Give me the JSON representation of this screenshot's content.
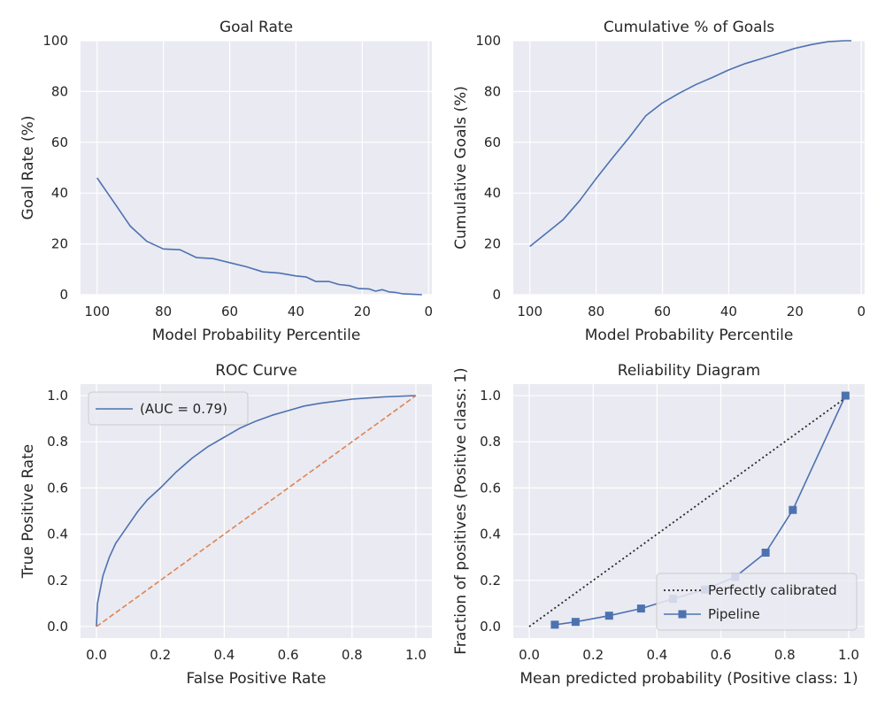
{
  "chart_data": [
    {
      "type": "line",
      "title": "Goal Rate",
      "xlabel": "Model Probability Percentile",
      "ylabel": "Goal Rate (%)",
      "xlim": [
        105,
        -1
      ],
      "ylim": [
        0,
        100
      ],
      "xticks": [
        100,
        80,
        60,
        40,
        20,
        0
      ],
      "yticks": [
        0,
        20,
        40,
        60,
        80,
        100
      ],
      "grid": true,
      "series": [
        {
          "color": "#4c72b0",
          "x": [
            100,
            95,
            90,
            85,
            80,
            75,
            70,
            65,
            60,
            55,
            50,
            45,
            40,
            37,
            34,
            30,
            27,
            24,
            21,
            18,
            16,
            14,
            12,
            10,
            8,
            5,
            2
          ],
          "y": [
            46,
            36.5,
            27,
            21,
            18,
            17.7,
            14.6,
            14.2,
            12.6,
            11,
            9,
            8.5,
            7.4,
            7,
            5.2,
            5.2,
            4,
            3.6,
            2.4,
            2.3,
            1.4,
            2,
            1.1,
            0.9,
            0.4,
            0.2,
            0
          ]
        }
      ]
    },
    {
      "type": "line",
      "title": "Cumulative % of Goals",
      "xlabel": "Model Probability Percentile",
      "ylabel": "Cumulative Goals (%)",
      "xlim": [
        105,
        -1
      ],
      "ylim": [
        0,
        100
      ],
      "xticks": [
        100,
        80,
        60,
        40,
        20,
        0
      ],
      "yticks": [
        0,
        20,
        40,
        60,
        80,
        100
      ],
      "grid": true,
      "series": [
        {
          "color": "#4c72b0",
          "x": [
            100,
            90,
            85,
            80,
            75,
            70,
            65,
            60,
            55,
            50,
            45,
            40,
            35,
            30,
            25,
            20,
            15,
            10,
            5,
            3
          ],
          "y": [
            19,
            29.5,
            37,
            45.7,
            54,
            62,
            70.5,
            75.5,
            79.3,
            82.7,
            85.5,
            88.5,
            91,
            93,
            95,
            97,
            98.5,
            99.6,
            100,
            100
          ]
        }
      ]
    },
    {
      "type": "line",
      "title": "ROC Curve",
      "xlabel": "False Positive Rate",
      "ylabel": "True Positive Rate",
      "xlim": [
        -0.05,
        1.05
      ],
      "ylim": [
        -0.05,
        1.05
      ],
      "xticks": [
        0.0,
        0.2,
        0.4,
        0.6,
        0.8,
        1.0
      ],
      "yticks": [
        0.0,
        0.2,
        0.4,
        0.6,
        0.8,
        1.0
      ],
      "grid": true,
      "legend": "top-left",
      "series": [
        {
          "name": "(AUC = 0.79)",
          "color": "#4c72b0",
          "x": [
            0,
            0.003,
            0.01,
            0.02,
            0.04,
            0.06,
            0.08,
            0.1,
            0.13,
            0.16,
            0.2,
            0.25,
            0.3,
            0.35,
            0.4,
            0.45,
            0.5,
            0.55,
            0.6,
            0.65,
            0.7,
            0.8,
            0.9,
            1.0
          ],
          "y": [
            0,
            0.1,
            0.15,
            0.22,
            0.3,
            0.36,
            0.4,
            0.44,
            0.5,
            0.55,
            0.6,
            0.67,
            0.73,
            0.78,
            0.82,
            0.86,
            0.89,
            0.915,
            0.935,
            0.955,
            0.967,
            0.985,
            0.995,
            1.0
          ]
        },
        {
          "color": "#dd8452",
          "style": "dashed",
          "x": [
            0,
            1
          ],
          "y": [
            0,
            1
          ]
        }
      ]
    },
    {
      "type": "line",
      "title": "Reliability Diagram",
      "xlabel": "Mean predicted probability (Positive class: 1)",
      "ylabel": "Fraction of positives (Positive class: 1)",
      "xlim": [
        -0.05,
        1.05
      ],
      "ylim": [
        -0.05,
        1.05
      ],
      "xticks": [
        0.0,
        0.2,
        0.4,
        0.6,
        0.8,
        1.0
      ],
      "yticks": [
        0.0,
        0.2,
        0.4,
        0.6,
        0.8,
        1.0
      ],
      "grid": true,
      "legend": "lower-right",
      "series": [
        {
          "name": "Perfectly calibrated",
          "color": "#262626",
          "style": "dotted",
          "x": [
            0,
            1
          ],
          "y": [
            0,
            1
          ]
        },
        {
          "name": "Pipeline",
          "color": "#4c72b0",
          "marker": "square",
          "x": [
            0.08,
            0.145,
            0.25,
            0.35,
            0.45,
            0.55,
            0.645,
            0.74,
            0.825,
            0.99
          ],
          "y": [
            0.008,
            0.02,
            0.047,
            0.078,
            0.12,
            0.16,
            0.215,
            0.32,
            0.505,
            1.0
          ]
        }
      ]
    }
  ]
}
